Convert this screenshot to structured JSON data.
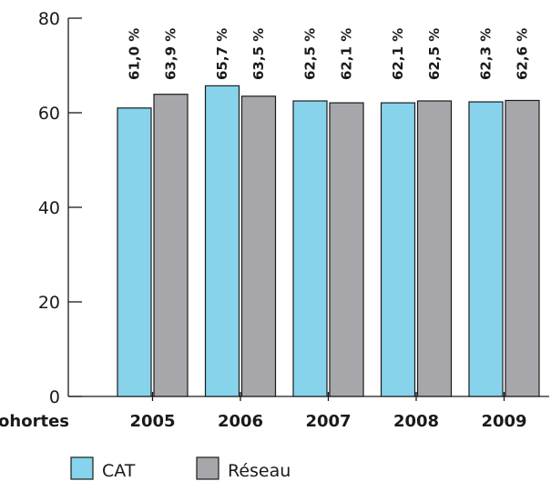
{
  "chart_data": {
    "type": "bar",
    "x_axis_title": "Cohortes",
    "categories": [
      "2005",
      "2006",
      "2007",
      "2008",
      "2009"
    ],
    "series": [
      {
        "name": "CAT",
        "color": "#87d3ec",
        "values": [
          61.0,
          65.7,
          62.5,
          62.1,
          62.3
        ],
        "labels": [
          "61,0 %",
          "65,7 %",
          "62,5 %",
          "62,1 %",
          "62,3 %"
        ]
      },
      {
        "name": "Réseau",
        "color": "#a7a7ab",
        "values": [
          63.9,
          63.5,
          62.1,
          62.5,
          62.6
        ],
        "labels": [
          "63,9 %",
          "63,5 %",
          "62,1 %",
          "62,5 %",
          "62,6 %"
        ]
      }
    ],
    "ylim": [
      0,
      80
    ],
    "yticks": [
      "0",
      "20",
      "40",
      "60",
      "80"
    ],
    "grid": false,
    "legend_position": "bottom-left"
  }
}
